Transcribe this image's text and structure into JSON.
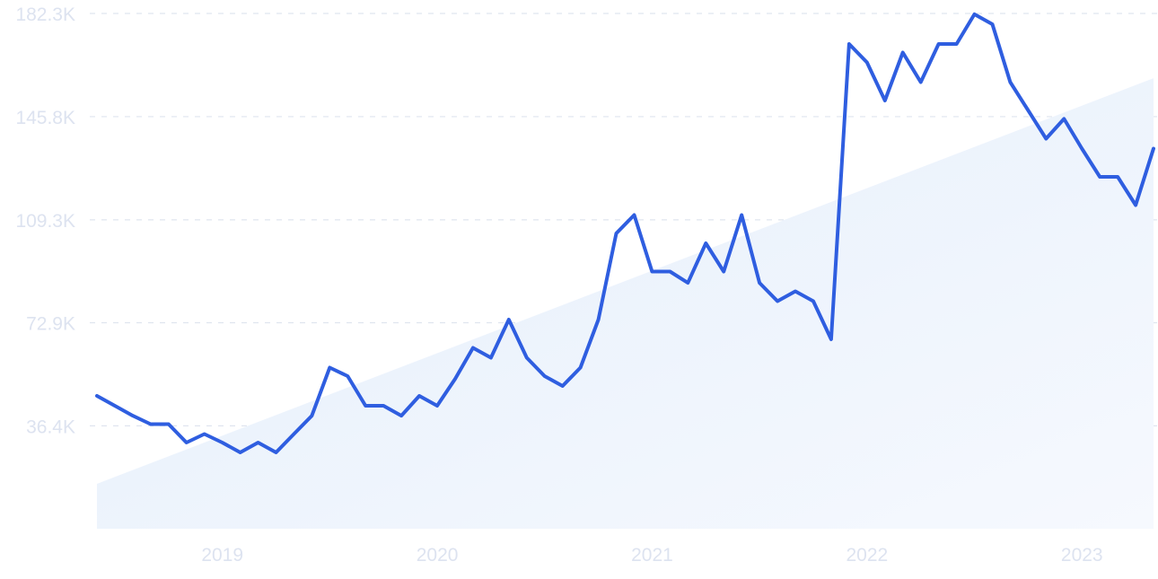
{
  "chart_data": {
    "type": "line",
    "title": "",
    "xlabel": "",
    "ylabel": "",
    "x_tick_labels": [
      "2019",
      "2020",
      "2021",
      "2022",
      "2023"
    ],
    "y_tick_labels": [
      "36.4K",
      "72.9K",
      "109.3K",
      "145.8K",
      "182.3K"
    ],
    "y_ticks": [
      36400,
      72900,
      109300,
      145800,
      182300
    ],
    "ylim": [
      0,
      182300
    ],
    "xlim": [
      "2018-07",
      "2023-06"
    ],
    "grid": true,
    "legend": "none",
    "series": [
      {
        "x": [
          "2018-07",
          "2018-08",
          "2018-09",
          "2018-10",
          "2018-11",
          "2018-12",
          "2019-01",
          "2019-02",
          "2019-03",
          "2019-04",
          "2019-05",
          "2019-06",
          "2019-07",
          "2019-08",
          "2019-09",
          "2019-10",
          "2019-11",
          "2019-12",
          "2020-01",
          "2020-02",
          "2020-03",
          "2020-04",
          "2020-05",
          "2020-06",
          "2020-07",
          "2020-08",
          "2020-09",
          "2020-10",
          "2020-11",
          "2020-12",
          "2021-01",
          "2021-02",
          "2021-03",
          "2021-04",
          "2021-05",
          "2021-06",
          "2021-07",
          "2021-08",
          "2021-09",
          "2021-10",
          "2021-11",
          "2021-12",
          "2022-01",
          "2022-02",
          "2022-03",
          "2022-04",
          "2022-05",
          "2022-06",
          "2022-07",
          "2022-08",
          "2022-09",
          "2022-10",
          "2022-11",
          "2022-12",
          "2023-01",
          "2023-02",
          "2023-03",
          "2023-04",
          "2023-05",
          "2023-06"
        ],
        "values": [
          47000,
          43500,
          40000,
          37000,
          37000,
          30500,
          33500,
          30500,
          27000,
          30500,
          27000,
          33500,
          40000,
          57000,
          54000,
          43500,
          43500,
          40000,
          47000,
          43500,
          53000,
          64000,
          60500,
          74000,
          60500,
          54000,
          50500,
          57000,
          74000,
          104500,
          111000,
          91000,
          91000,
          87000,
          101000,
          91000,
          111000,
          87000,
          80500,
          84000,
          80500,
          67000,
          171500,
          165000,
          151500,
          168500,
          158000,
          171500,
          171500,
          182000,
          178500,
          158000,
          148000,
          138000,
          145000,
          134500,
          124500,
          124500,
          114500,
          134500
        ]
      }
    ],
    "colors": {
      "line": "#2f5ee0",
      "area_top": "#e4eefb",
      "area_bottom": "#f6f9fe",
      "grid": "#dfe5ef",
      "tick_text": "#dde3f0"
    }
  }
}
